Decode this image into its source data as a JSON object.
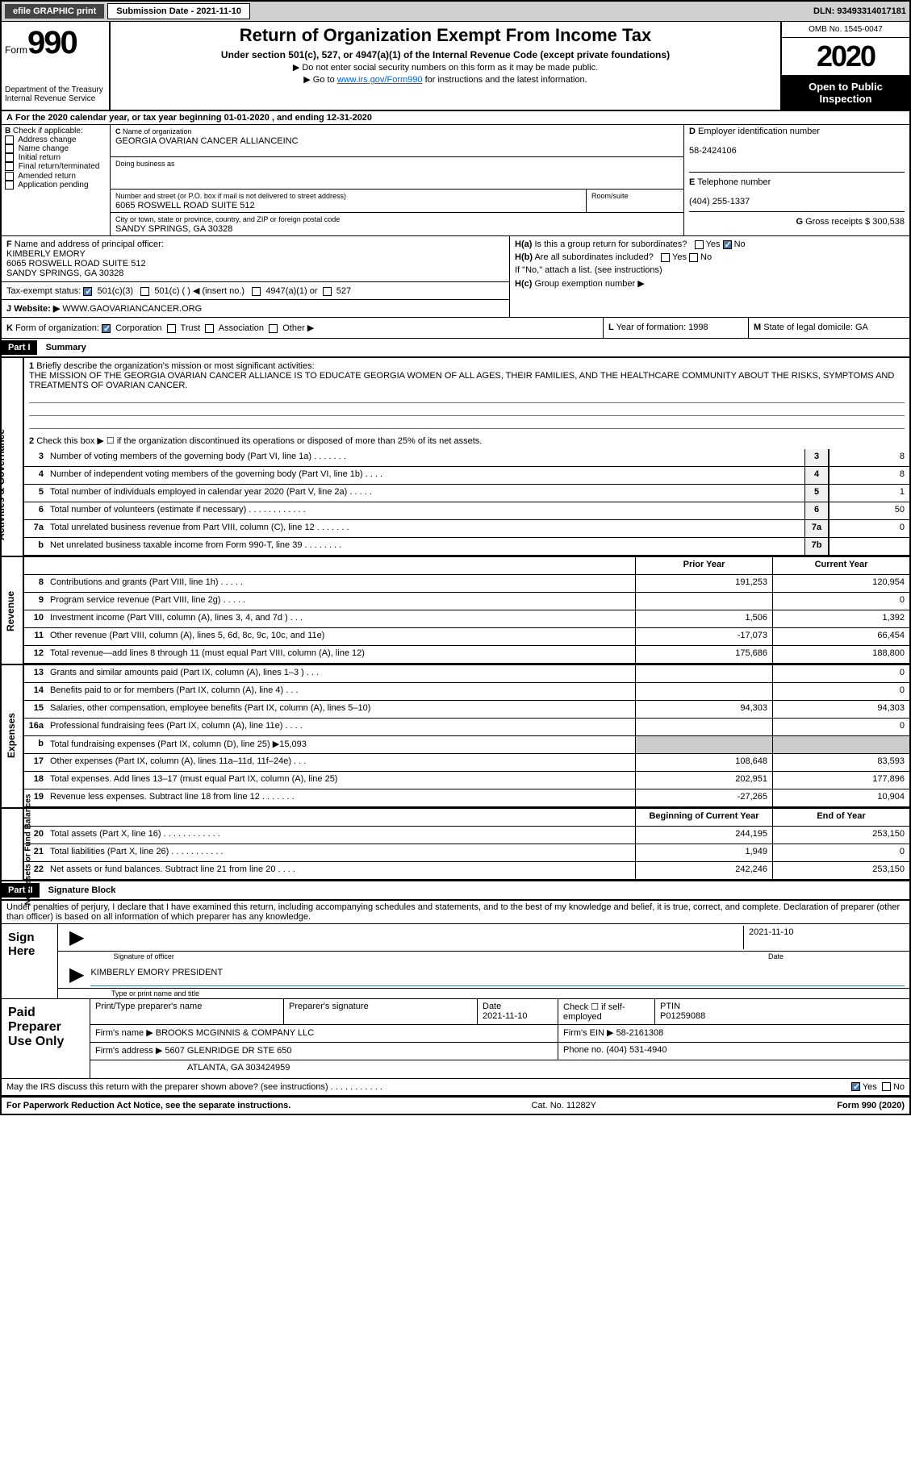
{
  "topbar": {
    "efile": "efile GRAPHIC print",
    "submission_label": "Submission Date - 2021-11-10",
    "dln": "DLN: 93493314017181"
  },
  "header": {
    "form_word": "Form",
    "form_num": "990",
    "dept": "Department of the Treasury Internal Revenue Service",
    "title": "Return of Organization Exempt From Income Tax",
    "subtitle": "Under section 501(c), 527, or 4947(a)(1) of the Internal Revenue Code (except private foundations)",
    "note1": "Do not enter social security numbers on this form as it may be made public.",
    "note2_pre": "Go to ",
    "note2_link": "www.irs.gov/Form990",
    "note2_post": " for instructions and the latest information.",
    "omb": "OMB No. 1545-0047",
    "year": "2020",
    "inspect": "Open to Public Inspection"
  },
  "A": "For the 2020 calendar year, or tax year beginning 01-01-2020    , and ending 12-31-2020",
  "B": {
    "label": "Check if applicable:",
    "opts": [
      "Address change",
      "Name change",
      "Initial return",
      "Final return/terminated",
      "Amended return",
      "Application pending"
    ]
  },
  "C": {
    "name_label": "Name of organization",
    "name": "GEORGIA OVARIAN CANCER ALLIANCEINC",
    "dba_label": "Doing business as",
    "street_label": "Number and street (or P.O. box if mail is not delivered to street address)",
    "room_label": "Room/suite",
    "street": "6065 ROSWELL ROAD SUITE 512",
    "city_label": "City or town, state or province, country, and ZIP or foreign postal code",
    "city": "SANDY SPRINGS, GA  30328"
  },
  "D": {
    "label": "Employer identification number",
    "value": "58-2424106"
  },
  "E": {
    "label": "Telephone number",
    "value": "(404) 255-1337"
  },
  "G": {
    "label": "Gross receipts $",
    "value": "300,538"
  },
  "F": {
    "label": "Name and address of principal officer:",
    "name": "KIMBERLY EMORY",
    "street": "6065 ROSWELL ROAD SUITE 512",
    "city": "SANDY SPRINGS, GA  30328"
  },
  "H": {
    "a": "Is this a group return for subordinates?",
    "b": "Are all subordinates included?",
    "b_note": "If \"No,\" attach a list. (see instructions)",
    "c": "Group exemption number ▶",
    "yes": "Yes",
    "no": "No"
  },
  "tax_status": {
    "label": "Tax-exempt status:",
    "opts": [
      "501(c)(3)",
      "501(c) (   ) ◀ (insert no.)",
      "4947(a)(1) or",
      "527"
    ]
  },
  "J": {
    "label": "Website: ▶",
    "value": "WWW.GAOVARIANCANCER.ORG"
  },
  "K": {
    "label": "Form of organization:",
    "opts": [
      "Corporation",
      "Trust",
      "Association",
      "Other ▶"
    ]
  },
  "L": {
    "label": "Year of formation:",
    "value": "1998"
  },
  "M": {
    "label": "State of legal domicile:",
    "value": "GA"
  },
  "part1": {
    "hdr": "Part I",
    "title": "Summary",
    "q1": "Briefly describe the organization's mission or most significant activities:",
    "mission": "THE MISSION OF THE GEORGIA OVARIAN CANCER ALLIANCE IS TO EDUCATE GEORGIA WOMEN OF ALL AGES, THEIR FAMILIES, AND THE HEALTHCARE COMMUNITY ABOUT THE RISKS, SYMPTOMS AND TREATMENTS OF OVARIAN CANCER.",
    "q2": "Check this box ▶ ☐ if the organization discontinued its operations or disposed of more than 25% of its net assets."
  },
  "sides": {
    "gov": "Activities & Governance",
    "rev": "Revenue",
    "exp": "Expenses",
    "net": "Net Assets or Fund Balances"
  },
  "gov_lines": [
    {
      "n": "3",
      "t": "Number of voting members of the governing body (Part VI, line 1a)  .    .    .    .    .    .    .",
      "box": "3",
      "v": "8"
    },
    {
      "n": "4",
      "t": "Number of independent voting members of the governing body (Part VI, line 1b)  .    .    .    .",
      "box": "4",
      "v": "8"
    },
    {
      "n": "5",
      "t": "Total number of individuals employed in calendar year 2020 (Part V, line 2a)  .    .    .    .    .",
      "box": "5",
      "v": "1"
    },
    {
      "n": "6",
      "t": "Total number of volunteers (estimate if necessary)    .    .    .    .    .    .    .    .    .    .    .    .",
      "box": "6",
      "v": "50"
    },
    {
      "n": "7a",
      "t": "Total unrelated business revenue from Part VIII, column (C), line 12  .    .    .    .    .    .    .",
      "box": "7a",
      "v": "0"
    },
    {
      "n": "b",
      "t": "Net unrelated business taxable income from Form 990-T, line 39    .    .    .    .    .    .    .    .",
      "box": "7b",
      "v": ""
    }
  ],
  "cols": {
    "py": "Prior Year",
    "cy": "Current Year"
  },
  "rev_lines": [
    {
      "n": "8",
      "t": "Contributions and grants (Part VIII, line 1h)    .    .    .    .    .",
      "py": "191,253",
      "cy": "120,954"
    },
    {
      "n": "9",
      "t": "Program service revenue (Part VIII, line 2g)    .    .    .    .    .",
      "py": "",
      "cy": "0"
    },
    {
      "n": "10",
      "t": "Investment income (Part VIII, column (A), lines 3, 4, and 7d )    .    .    .",
      "py": "1,506",
      "cy": "1,392"
    },
    {
      "n": "11",
      "t": "Other revenue (Part VIII, column (A), lines 5, 6d, 8c, 9c, 10c, and 11e)",
      "py": "-17,073",
      "cy": "66,454"
    },
    {
      "n": "12",
      "t": "Total revenue—add lines 8 through 11 (must equal Part VIII, column (A), line 12)",
      "py": "175,686",
      "cy": "188,800"
    }
  ],
  "exp_lines": [
    {
      "n": "13",
      "t": "Grants and similar amounts paid (Part IX, column (A), lines 1–3 )  .    .    .",
      "py": "",
      "cy": "0"
    },
    {
      "n": "14",
      "t": "Benefits paid to or for members (Part IX, column (A), line 4)  .    .    .",
      "py": "",
      "cy": "0"
    },
    {
      "n": "15",
      "t": "Salaries, other compensation, employee benefits (Part IX, column (A), lines 5–10)",
      "py": "94,303",
      "cy": "94,303"
    },
    {
      "n": "16a",
      "t": "Professional fundraising fees (Part IX, column (A), line 11e)    .    .    .    .",
      "py": "",
      "cy": "0"
    },
    {
      "n": "b",
      "t": "Total fundraising expenses (Part IX, column (D), line 25) ▶15,093",
      "py": "SHADE",
      "cy": "SHADE"
    },
    {
      "n": "17",
      "t": "Other expenses (Part IX, column (A), lines 11a–11d, 11f–24e)    .    .    .",
      "py": "108,648",
      "cy": "83,593"
    },
    {
      "n": "18",
      "t": "Total expenses. Add lines 13–17 (must equal Part IX, column (A), line 25)",
      "py": "202,951",
      "cy": "177,896"
    },
    {
      "n": "19",
      "t": "Revenue less expenses. Subtract line 18 from line 12  .    .    .    .    .    .    .",
      "py": "-27,265",
      "cy": "10,904"
    }
  ],
  "cols2": {
    "boy": "Beginning of Current Year",
    "eoy": "End of Year"
  },
  "net_lines": [
    {
      "n": "20",
      "t": "Total assets (Part X, line 16)  .    .    .    .    .    .    .    .    .    .    .    .",
      "py": "244,195",
      "cy": "253,150"
    },
    {
      "n": "21",
      "t": "Total liabilities (Part X, line 26)  .    .    .    .    .    .    .    .    .    .    .",
      "py": "1,949",
      "cy": "0"
    },
    {
      "n": "22",
      "t": "Net assets or fund balances. Subtract line 21 from line 20    .    .    .    .",
      "py": "242,246",
      "cy": "253,150"
    }
  ],
  "part2": {
    "hdr": "Part II",
    "title": "Signature Block",
    "decl": "Under penalties of perjury, I declare that I have examined this return, including accompanying schedules and statements, and to the best of my knowledge and belief, it is true, correct, and complete. Declaration of preparer (other than officer) is based on all information of which preparer has any knowledge."
  },
  "sign": {
    "label": "Sign Here",
    "sig_label": "Signature of officer",
    "date_label": "Date",
    "date": "2021-11-10",
    "name": "KIMBERLY EMORY PRESIDENT",
    "name_label": "Type or print name and title"
  },
  "prep": {
    "label": "Paid Preparer Use Only",
    "cols": [
      "Print/Type preparer's name",
      "Preparer's signature",
      "Date",
      "Check ☐ if self-employed",
      "PTIN"
    ],
    "date": "2021-11-10",
    "ptin": "P01259088",
    "firm_label": "Firm's name    ▶",
    "firm": "BROOKS MCGINNIS & COMPANY LLC",
    "ein_label": "Firm's EIN ▶",
    "ein": "58-2161308",
    "addr_label": "Firm's address ▶",
    "addr1": "5607 GLENRIDGE DR STE 650",
    "addr2": "ATLANTA, GA  303424959",
    "phone_label": "Phone no.",
    "phone": "(404) 531-4940"
  },
  "discuss": "May the IRS discuss this return with the preparer shown above? (see instructions)    .    .    .    .    .    .    .    .    .    .    .",
  "footer": {
    "left": "For Paperwork Reduction Act Notice, see the separate instructions.",
    "center": "Cat. No. 11282Y",
    "right": "Form 990 (2020)"
  }
}
